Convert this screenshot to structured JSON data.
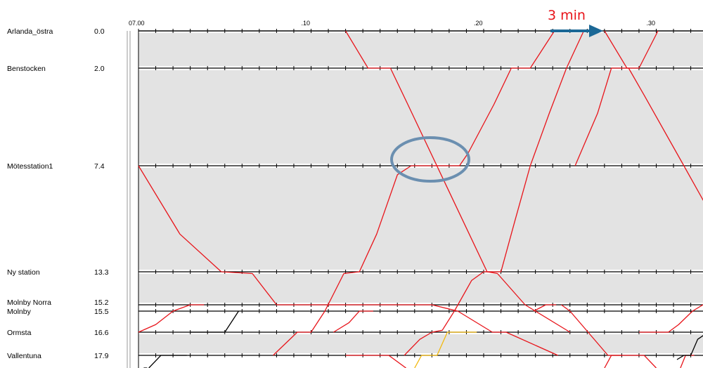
{
  "chart_data": {
    "type": "line",
    "title": "",
    "xlabel": "",
    "ylabel": "",
    "x_range": [
      "07:00",
      "07:33"
    ],
    "time_ticks": [
      {
        "label": "07.00",
        "minute": 0
      },
      {
        "label": ".10",
        "minute": 10
      },
      {
        "label": ".20",
        "minute": 20
      },
      {
        "label": ".30",
        "minute": 30
      }
    ],
    "stations": [
      {
        "name": "Arlanda_östra",
        "km": "0.0",
        "km_value": 0.0
      },
      {
        "name": "Benstocken",
        "km": "2.0",
        "km_value": 2.0
      },
      {
        "name": "Mötesstation1",
        "km": "7.4",
        "km_value": 7.4
      },
      {
        "name": "Ny station",
        "km": "13.3",
        "km_value": 13.3
      },
      {
        "name": "Molnby Norra",
        "km": "15.2",
        "km_value": 15.2
      },
      {
        "name": "Molnby",
        "km": "15.5",
        "km_value": 15.5
      },
      {
        "name": "Ormsta",
        "km": "16.6",
        "km_value": 16.6
      },
      {
        "name": "Vallentuna",
        "km": "17.9",
        "km_value": 17.9
      }
    ],
    "series": [
      {
        "color": "#e8141a",
        "points": [
          [
            0,
            7.4
          ],
          [
            2.4,
            11.2
          ],
          [
            4.8,
            13.3
          ],
          [
            6.6,
            13.4
          ],
          [
            8.0,
            15.2
          ],
          [
            9.0,
            15.2
          ],
          [
            17.0,
            15.2
          ],
          [
            18.5,
            15.5
          ],
          [
            20.5,
            16.6
          ],
          [
            21.3,
            16.6
          ],
          [
            24.3,
            17.9
          ]
        ]
      },
      {
        "color": "#e8141a",
        "points": [
          [
            0,
            16.6
          ],
          [
            1.0,
            16.2
          ],
          [
            2.0,
            15.5
          ],
          [
            3.0,
            15.2
          ],
          [
            3.8,
            15.2
          ]
        ]
      },
      {
        "color": "#e8141a",
        "points": [
          [
            12.0,
            0.0
          ],
          [
            13.3,
            2.0
          ],
          [
            14.6,
            2.0
          ],
          [
            15.6,
            4.0
          ],
          [
            20.2,
            13.3
          ],
          [
            20.8,
            13.4
          ],
          [
            22.4,
            15.2
          ],
          [
            23.0,
            15.5
          ],
          [
            25.0,
            16.6
          ]
        ]
      },
      {
        "color": "#e8141a",
        "points": [
          [
            7.8,
            17.9
          ],
          [
            9.2,
            16.6
          ],
          [
            10.0,
            16.6
          ],
          [
            10.8,
            15.5
          ],
          [
            11.9,
            13.4
          ],
          [
            12.8,
            13.3
          ],
          [
            13.8,
            11.2
          ],
          [
            15.0,
            7.9
          ],
          [
            15.8,
            7.4
          ],
          [
            18.6,
            7.4
          ],
          [
            19.1,
            6.7
          ],
          [
            20.6,
            4.0
          ],
          [
            21.6,
            2.0
          ],
          [
            22.7,
            2.0
          ],
          [
            23.4,
            1.0
          ],
          [
            24.1,
            0.0
          ]
        ]
      },
      {
        "color": "#e8141a",
        "points": [
          [
            11.3,
            16.6
          ],
          [
            12.2,
            16.1
          ],
          [
            12.8,
            15.5
          ],
          [
            13.6,
            15.5
          ]
        ]
      },
      {
        "color": "#e8141a",
        "points": [
          [
            12.0,
            17.9
          ],
          [
            13.5,
            17.9
          ],
          [
            14.5,
            17.9
          ],
          [
            15.5,
            18.5
          ]
        ]
      },
      {
        "color": "#e8141a",
        "points": [
          [
            15.4,
            17.9
          ],
          [
            16.3,
            17.0
          ],
          [
            17.0,
            16.6
          ],
          [
            17.6,
            16.5
          ],
          [
            18.3,
            15.5
          ],
          [
            19.3,
            13.8
          ],
          [
            20.0,
            13.3
          ],
          [
            21.0,
            13.3
          ],
          [
            21.8,
            10.5
          ],
          [
            22.7,
            7.4
          ],
          [
            23.8,
            4.5
          ],
          [
            24.8,
            2.0
          ],
          [
            25.8,
            0.0
          ]
        ]
      },
      {
        "color": "#e8141a",
        "points": [
          [
            22.9,
            15.5
          ],
          [
            23.6,
            15.2
          ],
          [
            24.2,
            15.2
          ]
        ]
      },
      {
        "color": "#e8141a",
        "points": [
          [
            27.0,
            0.0
          ],
          [
            28.3,
            2.0
          ],
          [
            29.0,
            2.0
          ],
          [
            30.1,
            0.0
          ]
        ]
      },
      {
        "color": "#e8141a",
        "points": [
          [
            25.3,
            7.4
          ],
          [
            26.6,
            4.5
          ],
          [
            27.4,
            2.0
          ],
          [
            28.4,
            2.0
          ],
          [
            29.3,
            3.5
          ],
          [
            31.6,
            7.4
          ],
          [
            33.0,
            9.8
          ]
        ]
      },
      {
        "color": "#e8141a",
        "points": [
          [
            24.5,
            15.2
          ],
          [
            25.0,
            15.5
          ],
          [
            27.2,
            17.9
          ],
          [
            28.5,
            17.9
          ],
          [
            29.3,
            17.9
          ],
          [
            30.0,
            18.5
          ]
        ]
      },
      {
        "color": "#e8141a",
        "points": [
          [
            27.0,
            18.5
          ],
          [
            27.4,
            17.9
          ],
          [
            28.0,
            17.9
          ]
        ]
      },
      {
        "color": "#e8141a",
        "points": [
          [
            29.0,
            16.6
          ],
          [
            30.7,
            16.6
          ],
          [
            31.3,
            16.2
          ],
          [
            32.1,
            15.5
          ],
          [
            32.7,
            15.2
          ],
          [
            33.0,
            15.2
          ]
        ]
      },
      {
        "color": "#e8141a",
        "points": [
          [
            31.4,
            18.5
          ],
          [
            31.7,
            17.9
          ],
          [
            32.2,
            17.9
          ]
        ]
      },
      {
        "color": "#000000",
        "points": [
          [
            0.6,
            18.5
          ],
          [
            1.3,
            17.9
          ],
          [
            2.8,
            17.9
          ]
        ]
      },
      {
        "color": "#000000",
        "points": [
          [
            3.0,
            16.6
          ],
          [
            4.0,
            16.6
          ],
          [
            5.0,
            16.6
          ],
          [
            5.8,
            15.5
          ]
        ]
      },
      {
        "color": "#000000",
        "points": [
          [
            0.3,
            18.5
          ],
          [
            0.5,
            18.5
          ]
        ]
      },
      {
        "color": "#000000",
        "points": [
          [
            31.2,
            18.1
          ],
          [
            31.6,
            17.9
          ],
          [
            32.0,
            17.9
          ],
          [
            32.4,
            17.0
          ],
          [
            33.0,
            16.6
          ]
        ]
      },
      {
        "color": "#f2b90f",
        "points": [
          [
            16.0,
            18.5
          ],
          [
            16.4,
            17.9
          ],
          [
            17.3,
            17.9
          ],
          [
            17.9,
            16.6
          ],
          [
            19.6,
            16.6
          ]
        ]
      }
    ],
    "annotations": [
      {
        "text": "3 min",
        "color": "#e8141a"
      }
    ],
    "highlight": {
      "shape": "ellipse",
      "color": "#6b8fb0",
      "around_station": "Mötesstation1",
      "around_minute": 17
    }
  }
}
